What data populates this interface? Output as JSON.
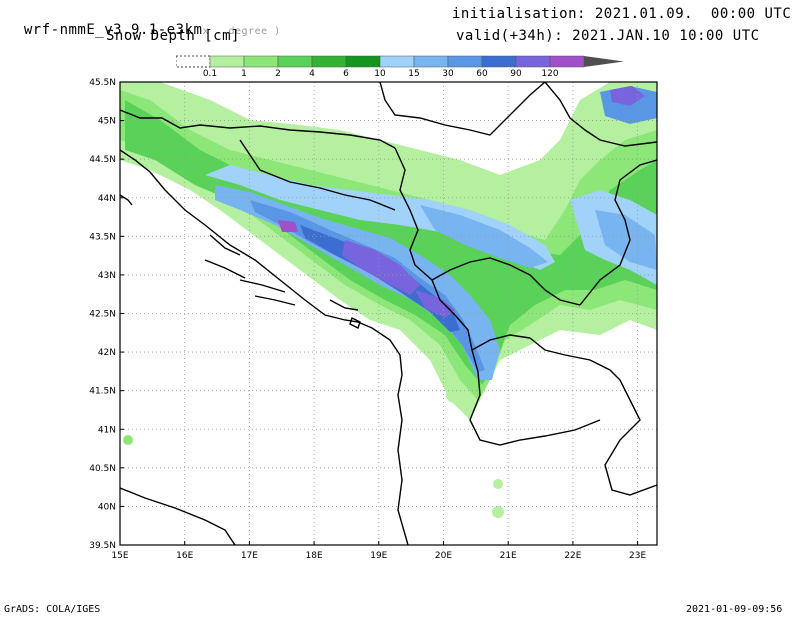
{
  "header": {
    "model": "wrf-nmmE_v3.9.1-e3km",
    "model_unit": "x . degree )",
    "field": "Snow Depth [cm]",
    "init": "initialisation: 2021.01.09.  00:00 UTC",
    "valid": "valid(+34h): 2021.JAN.10 10:00 UTC"
  },
  "legend": {
    "levels": [
      "0.1",
      "1",
      "2",
      "4",
      "6",
      "10",
      "15",
      "30",
      "60",
      "90",
      "120"
    ],
    "colors": [
      "#b4f0a0",
      "#8ce678",
      "#5ad25a",
      "#32b432",
      "#14961e",
      "#a0d2fa",
      "#78b4f0",
      "#5a96e6",
      "#3c6ed2",
      "#7864dc",
      "#a050c8",
      "#505050"
    ]
  },
  "map": {
    "lat_labels": [
      "45.5N",
      "45N",
      "44.5N",
      "44N",
      "43.5N",
      "43N",
      "42.5N",
      "42N",
      "41.5N",
      "41N",
      "40.5N",
      "40N",
      "39.5N"
    ],
    "lon_labels": [
      "15E",
      "16E",
      "17E",
      "18E",
      "19E",
      "20E",
      "21E",
      "22E",
      "23E"
    ]
  },
  "footer": {
    "left": "GrADS: COLA/IGES",
    "right": "2021-01-09-09:56"
  }
}
